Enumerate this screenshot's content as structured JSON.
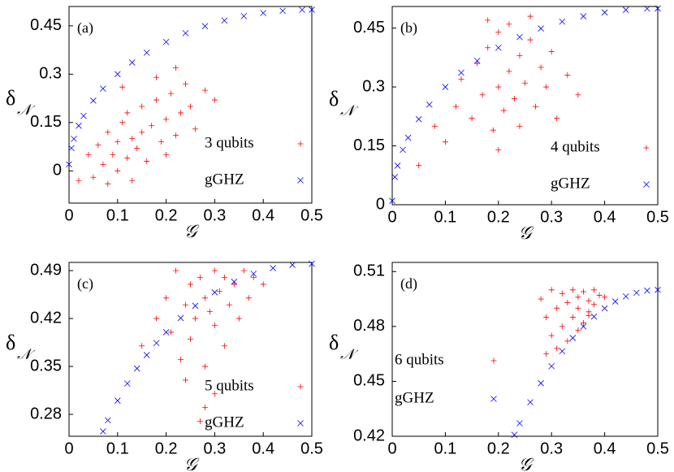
{
  "chart_data": [
    {
      "type": "scatter",
      "label": "(a)",
      "xlabel": "𝒢",
      "ylabel": "δ",
      "ylabel_subscript": "𝒩",
      "xlim": [
        0,
        0.5
      ],
      "ylim": [
        -0.1,
        0.51
      ],
      "xticks": [
        0,
        0.1,
        0.2,
        0.3,
        0.4,
        0.5
      ],
      "yticks": [
        0,
        0.15,
        0.3,
        0.45
      ],
      "legend": "right",
      "series": [
        {
          "name": "3 qubits",
          "color": "#ff0000",
          "marker": "+",
          "x": [
            0.02,
            0.04,
            0.05,
            0.06,
            0.07,
            0.08,
            0.09,
            0.1,
            0.1,
            0.11,
            0.12,
            0.12,
            0.13,
            0.14,
            0.15,
            0.15,
            0.16,
            0.17,
            0.18,
            0.19,
            0.2,
            0.2,
            0.21,
            0.22,
            0.23,
            0.24,
            0.25,
            0.26,
            0.28,
            0.3,
            0.08,
            0.13,
            0.18,
            0.22,
            0.11
          ],
          "values": [
            -0.03,
            0.05,
            -0.02,
            0.08,
            0.02,
            0.12,
            0.05,
            0.0,
            0.09,
            0.15,
            0.04,
            0.18,
            0.1,
            0.07,
            0.2,
            0.12,
            0.03,
            0.14,
            0.22,
            0.09,
            0.16,
            0.05,
            0.24,
            0.11,
            0.18,
            0.27,
            0.2,
            0.13,
            0.25,
            0.22,
            -0.04,
            -0.03,
            0.29,
            0.32,
            0.26
          ]
        },
        {
          "name": "gGHZ",
          "color": "#0000ff",
          "marker": "x",
          "x": [
            0,
            0.005,
            0.01,
            0.02,
            0.03,
            0.05,
            0.07,
            0.1,
            0.13,
            0.16,
            0.2,
            0.24,
            0.28,
            0.32,
            0.36,
            0.4,
            0.44,
            0.48,
            0.5
          ],
          "values": [
            0.02,
            0.0705,
            0.0995,
            0.14,
            0.1706,
            0.218,
            0.2551,
            0.3,
            0.3363,
            0.3666,
            0.4,
            0.4271,
            0.449,
            0.4665,
            0.48,
            0.4899,
            0.4964,
            0.4996,
            0.5
          ]
        }
      ]
    },
    {
      "type": "scatter",
      "label": "(b)",
      "xlabel": "𝒢",
      "ylabel": "δ",
      "ylabel_subscript": "𝒩",
      "xlim": [
        0,
        0.5
      ],
      "ylim": [
        0,
        0.505
      ],
      "xticks": [
        0,
        0.1,
        0.2,
        0.3,
        0.4,
        0.5
      ],
      "yticks": [
        0,
        0.15,
        0.3,
        0.45
      ],
      "legend": "right",
      "series": [
        {
          "name": "4 qubits",
          "color": "#ff0000",
          "marker": "+",
          "x": [
            0.05,
            0.08,
            0.1,
            0.12,
            0.13,
            0.15,
            0.16,
            0.17,
            0.18,
            0.19,
            0.2,
            0.2,
            0.21,
            0.22,
            0.22,
            0.23,
            0.24,
            0.24,
            0.25,
            0.26,
            0.27,
            0.28,
            0.29,
            0.3,
            0.31,
            0.33,
            0.35,
            0.18,
            0.2,
            0.26
          ],
          "values": [
            0.1,
            0.2,
            0.16,
            0.25,
            0.32,
            0.22,
            0.36,
            0.28,
            0.4,
            0.19,
            0.3,
            0.44,
            0.24,
            0.34,
            0.46,
            0.27,
            0.38,
            0.2,
            0.31,
            0.42,
            0.25,
            0.35,
            0.3,
            0.39,
            0.22,
            0.33,
            0.28,
            0.47,
            0.14,
            0.48
          ]
        },
        {
          "name": "gGHZ",
          "color": "#0000ff",
          "marker": "x",
          "x": [
            0,
            0.005,
            0.01,
            0.02,
            0.03,
            0.05,
            0.07,
            0.1,
            0.13,
            0.16,
            0.2,
            0.24,
            0.28,
            0.32,
            0.36,
            0.4,
            0.44,
            0.48,
            0.5
          ],
          "values": [
            0.01,
            0.0705,
            0.0995,
            0.14,
            0.1706,
            0.218,
            0.2551,
            0.3,
            0.3363,
            0.3666,
            0.4,
            0.4271,
            0.449,
            0.4665,
            0.48,
            0.4899,
            0.4964,
            0.4996,
            0.5
          ]
        }
      ]
    },
    {
      "type": "scatter",
      "label": "(c)",
      "xlabel": "𝒢",
      "ylabel": "δ",
      "ylabel_subscript": "𝒩",
      "xlim": [
        0,
        0.5
      ],
      "ylim": [
        0.248,
        0.502
      ],
      "xticks": [
        0,
        0.1,
        0.2,
        0.3,
        0.4,
        0.5
      ],
      "yticks": [
        0.28,
        0.35,
        0.42,
        0.49
      ],
      "legend": "right",
      "series": [
        {
          "name": "5 qubits",
          "color": "#ff0000",
          "marker": "+",
          "x": [
            0.15,
            0.18,
            0.2,
            0.21,
            0.22,
            0.23,
            0.24,
            0.25,
            0.25,
            0.26,
            0.27,
            0.28,
            0.28,
            0.29,
            0.3,
            0.3,
            0.31,
            0.32,
            0.32,
            0.33,
            0.34,
            0.35,
            0.36,
            0.37,
            0.38,
            0.4,
            0.28,
            0.3,
            0.24,
            0.27
          ],
          "values": [
            0.38,
            0.42,
            0.45,
            0.4,
            0.49,
            0.36,
            0.44,
            0.47,
            0.39,
            0.42,
            0.48,
            0.45,
            0.35,
            0.43,
            0.49,
            0.41,
            0.46,
            0.38,
            0.48,
            0.44,
            0.47,
            0.42,
            0.49,
            0.45,
            0.48,
            0.47,
            0.29,
            0.31,
            0.33,
            0.27
          ]
        },
        {
          "name": "gGHZ",
          "color": "#0000ff",
          "marker": "x",
          "x": [
            0.07,
            0.08,
            0.1,
            0.12,
            0.14,
            0.16,
            0.18,
            0.2,
            0.23,
            0.26,
            0.3,
            0.34,
            0.38,
            0.42,
            0.46,
            0.5
          ],
          "values": [
            0.2551,
            0.2713,
            0.3,
            0.325,
            0.347,
            0.3666,
            0.3842,
            0.4,
            0.4208,
            0.4386,
            0.4583,
            0.4737,
            0.4854,
            0.4936,
            0.4984,
            0.5
          ]
        }
      ]
    },
    {
      "type": "scatter",
      "label": "(d)",
      "xlabel": "𝒢",
      "ylabel": "δ",
      "ylabel_subscript": "𝒩",
      "xlim": [
        0,
        0.5
      ],
      "ylim": [
        0.42,
        0.515
      ],
      "xticks": [
        0,
        0.1,
        0.2,
        0.3,
        0.4,
        0.5
      ],
      "yticks": [
        0.42,
        0.45,
        0.48,
        0.51
      ],
      "legend": "left",
      "series": [
        {
          "name": "6 qubits",
          "color": "#ff0000",
          "marker": "+",
          "x": [
            0.28,
            0.29,
            0.3,
            0.3,
            0.31,
            0.32,
            0.32,
            0.33,
            0.34,
            0.34,
            0.35,
            0.35,
            0.36,
            0.36,
            0.37,
            0.37,
            0.38,
            0.38,
            0.39,
            0.4,
            0.33,
            0.31,
            0.35,
            0.29,
            0.37
          ],
          "values": [
            0.495,
            0.485,
            0.5,
            0.475,
            0.49,
            0.498,
            0.48,
            0.493,
            0.5,
            0.485,
            0.496,
            0.49,
            0.499,
            0.482,
            0.494,
            0.488,
            0.5,
            0.492,
            0.497,
            0.496,
            0.472,
            0.468,
            0.478,
            0.465,
            0.486
          ]
        },
        {
          "name": "gGHZ",
          "color": "#0000ff",
          "marker": "x",
          "x": [
            0.23,
            0.24,
            0.26,
            0.28,
            0.3,
            0.32,
            0.34,
            0.36,
            0.38,
            0.4,
            0.42,
            0.44,
            0.46,
            0.48,
            0.5
          ],
          "values": [
            0.4208,
            0.4271,
            0.4386,
            0.449,
            0.4583,
            0.4665,
            0.4737,
            0.48,
            0.4854,
            0.4899,
            0.4936,
            0.4964,
            0.4984,
            0.4996,
            0.5
          ]
        }
      ]
    }
  ]
}
